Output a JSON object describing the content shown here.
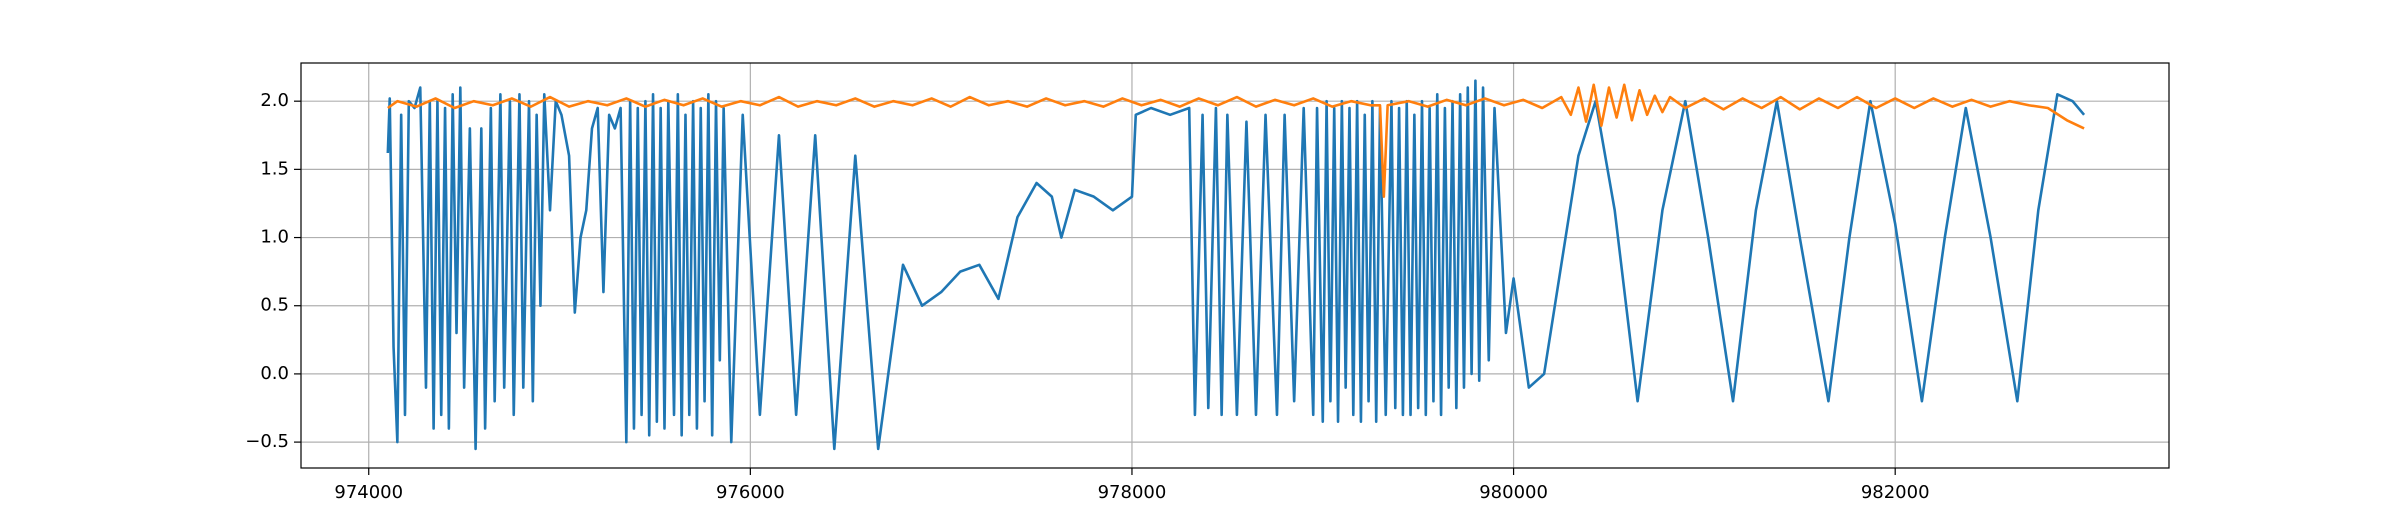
{
  "chart_data": {
    "type": "line",
    "xlim": [
      973645,
      983435
    ],
    "ylim": [
      -0.69,
      2.28
    ],
    "xticks": [
      974000,
      976000,
      978000,
      980000,
      982000
    ],
    "yticks": [
      {
        "value": -0.5,
        "label": "−0.5"
      },
      {
        "value": 0,
        "label": "0.0"
      },
      0.5,
      {
        "value": 1,
        "label": "1.0"
      },
      1.5,
      {
        "value": 2,
        "label": "2.0"
      }
    ],
    "grid": true,
    "series": [
      {
        "color": "#1f77b4",
        "x": [
          974100,
          974110,
          974130,
          974150,
          974170,
          974190,
          974210,
          974240,
          974270,
          974300,
          974320,
          974340,
          974360,
          974380,
          974400,
          974420,
          974440,
          974460,
          974480,
          974500,
          974530,
          974560,
          974590,
          974610,
          974640,
          974660,
          974690,
          974710,
          974740,
          974760,
          974790,
          974810,
          974840,
          974860,
          974880,
          974900,
          974920,
          974950,
          974980,
          975010,
          975050,
          975080,
          975110,
          975140,
          975170,
          975200,
          975230,
          975260,
          975290,
          975320,
          975350,
          975370,
          975390,
          975410,
          975430,
          975450,
          975470,
          975490,
          975510,
          975530,
          975550,
          975570,
          975600,
          975620,
          975640,
          975660,
          975680,
          975700,
          975720,
          975740,
          975760,
          975780,
          975800,
          975820,
          975840,
          975860,
          975900,
          975960,
          976050,
          976150,
          976240,
          976340,
          976440,
          976550,
          976670,
          976800,
          976900,
          977000,
          977100,
          977200,
          977300,
          977400,
          977500,
          977580,
          977630,
          977700,
          977800,
          977900,
          978000,
          978020,
          978100,
          978200,
          978300,
          978330,
          978370,
          978400,
          978440,
          978470,
          978500,
          978550,
          978600,
          978650,
          978700,
          978760,
          978800,
          978850,
          978900,
          978950,
          978970,
          979000,
          979020,
          979040,
          979060,
          979080,
          979100,
          979120,
          979140,
          979160,
          979180,
          979200,
          979220,
          979240,
          979260,
          979280,
          979300,
          979330,
          979360,
          979380,
          979400,
          979420,
          979440,
          979460,
          979480,
          979500,
          979520,
          979540,
          979560,
          979580,
          979600,
          979620,
          979640,
          979660,
          979680,
          979700,
          979720,
          979740,
          979760,
          979780,
          979800,
          979820,
          979840,
          979870,
          979900,
          979960,
          980000,
          980080,
          980160,
          980250,
          980340,
          980430,
          980530,
          980650,
          980780,
          980900,
          981020,
          981150,
          981270,
          981380,
          981500,
          981650,
          981760,
          981870,
          982000,
          982140,
          982260,
          982370,
          982500,
          982640,
          982750,
          982850,
          982930,
          982990
        ],
        "values": [
          1.62,
          2.02,
          0.2,
          -0.5,
          1.9,
          -0.3,
          2.0,
          1.95,
          2.1,
          -0.1,
          2.0,
          -0.4,
          2.0,
          -0.3,
          1.95,
          -0.4,
          2.05,
          0.3,
          2.1,
          -0.1,
          1.8,
          -0.55,
          1.8,
          -0.4,
          1.95,
          -0.2,
          2.05,
          -0.1,
          2.0,
          -0.3,
          2.05,
          -0.1,
          2.0,
          -0.2,
          1.9,
          0.5,
          2.05,
          1.2,
          2.0,
          1.9,
          1.6,
          0.45,
          1.0,
          1.2,
          1.8,
          1.95,
          0.6,
          1.9,
          1.8,
          1.95,
          -0.5,
          2.0,
          -0.4,
          1.95,
          -0.3,
          2.0,
          -0.45,
          2.05,
          -0.35,
          1.95,
          -0.4,
          2.0,
          -0.3,
          2.05,
          -0.45,
          1.9,
          -0.3,
          2.0,
          -0.4,
          1.95,
          -0.2,
          2.05,
          -0.45,
          2.0,
          0.1,
          1.95,
          -0.5,
          1.9,
          -0.3,
          1.75,
          -0.3,
          1.75,
          -0.55,
          1.6,
          -0.55,
          0.8,
          0.5,
          0.6,
          0.75,
          0.8,
          0.55,
          1.15,
          1.4,
          1.3,
          1.0,
          1.35,
          1.3,
          1.2,
          1.3,
          1.9,
          1.95,
          1.9,
          1.95,
          -0.3,
          1.9,
          -0.25,
          1.95,
          -0.3,
          1.9,
          -0.3,
          1.85,
          -0.3,
          1.9,
          -0.3,
          1.9,
          -0.2,
          1.95,
          -0.3,
          1.95,
          -0.35,
          2.0,
          -0.2,
          1.95,
          -0.35,
          2.0,
          -0.1,
          1.95,
          -0.3,
          2.0,
          -0.35,
          1.9,
          -0.2,
          2.0,
          -0.35,
          1.95,
          -0.3,
          2.0,
          -0.25,
          1.95,
          -0.3,
          2.0,
          -0.3,
          1.9,
          -0.25,
          2.0,
          -0.3,
          1.95,
          -0.2,
          2.05,
          -0.3,
          1.95,
          -0.1,
          2.0,
          -0.25,
          2.05,
          -0.1,
          2.1,
          0.0,
          2.15,
          -0.05,
          2.1,
          0.1,
          1.95,
          0.3,
          0.7,
          -0.1,
          0.0,
          0.8,
          1.6,
          2.0,
          1.2,
          -0.2,
          1.2,
          2.0,
          1.0,
          -0.2,
          1.2,
          2.0,
          1.0,
          -0.2,
          1.0,
          2.0,
          1.1,
          -0.2,
          1.0,
          1.95,
          1.0,
          -0.2,
          1.2,
          2.05,
          2.0,
          1.9
        ]
      },
      {
        "color": "#ff7f0e",
        "x": [
          974100,
          974150,
          974250,
          974350,
          974450,
          974550,
          974650,
          974750,
          974850,
          974950,
          975050,
          975150,
          975250,
          975350,
          975450,
          975550,
          975650,
          975750,
          975850,
          975950,
          976050,
          976150,
          976250,
          976350,
          976450,
          976550,
          976650,
          976750,
          976850,
          976950,
          977050,
          977150,
          977250,
          977350,
          977450,
          977550,
          977650,
          977750,
          977850,
          977950,
          978050,
          978150,
          978250,
          978350,
          978450,
          978550,
          978650,
          978750,
          978850,
          978950,
          979050,
          979150,
          979250,
          979300,
          979320,
          979340,
          979450,
          979550,
          979650,
          979750,
          979850,
          979950,
          980050,
          980150,
          980250,
          980300,
          980340,
          980380,
          980420,
          980460,
          980500,
          980540,
          980580,
          980620,
          980660,
          980700,
          980740,
          980780,
          980820,
          980900,
          981000,
          981100,
          981200,
          981300,
          981400,
          981500,
          981600,
          981700,
          981800,
          981900,
          982000,
          982100,
          982200,
          982300,
          982400,
          982500,
          982600,
          982700,
          982800,
          982900,
          982990
        ],
        "values": [
          1.95,
          2.0,
          1.96,
          2.02,
          1.95,
          2.0,
          1.97,
          2.02,
          1.96,
          2.03,
          1.96,
          2.0,
          1.97,
          2.02,
          1.96,
          2.01,
          1.97,
          2.02,
          1.96,
          2.0,
          1.97,
          2.03,
          1.96,
          2.0,
          1.97,
          2.02,
          1.96,
          2.0,
          1.97,
          2.02,
          1.96,
          2.03,
          1.97,
          2.0,
          1.96,
          2.02,
          1.97,
          2.0,
          1.96,
          2.02,
          1.97,
          2.01,
          1.96,
          2.02,
          1.97,
          2.03,
          1.96,
          2.01,
          1.97,
          2.02,
          1.96,
          2.0,
          1.97,
          1.97,
          1.3,
          1.97,
          2.0,
          1.96,
          2.01,
          1.97,
          2.02,
          1.97,
          2.01,
          1.95,
          2.03,
          1.9,
          2.1,
          1.85,
          2.12,
          1.82,
          2.1,
          1.88,
          2.12,
          1.86,
          2.08,
          1.9,
          2.04,
          1.92,
          2.03,
          1.95,
          2.02,
          1.94,
          2.02,
          1.95,
          2.03,
          1.94,
          2.02,
          1.95,
          2.03,
          1.95,
          2.02,
          1.95,
          2.02,
          1.96,
          2.01,
          1.96,
          2.0,
          1.97,
          1.95,
          1.86,
          1.8
        ]
      }
    ]
  }
}
